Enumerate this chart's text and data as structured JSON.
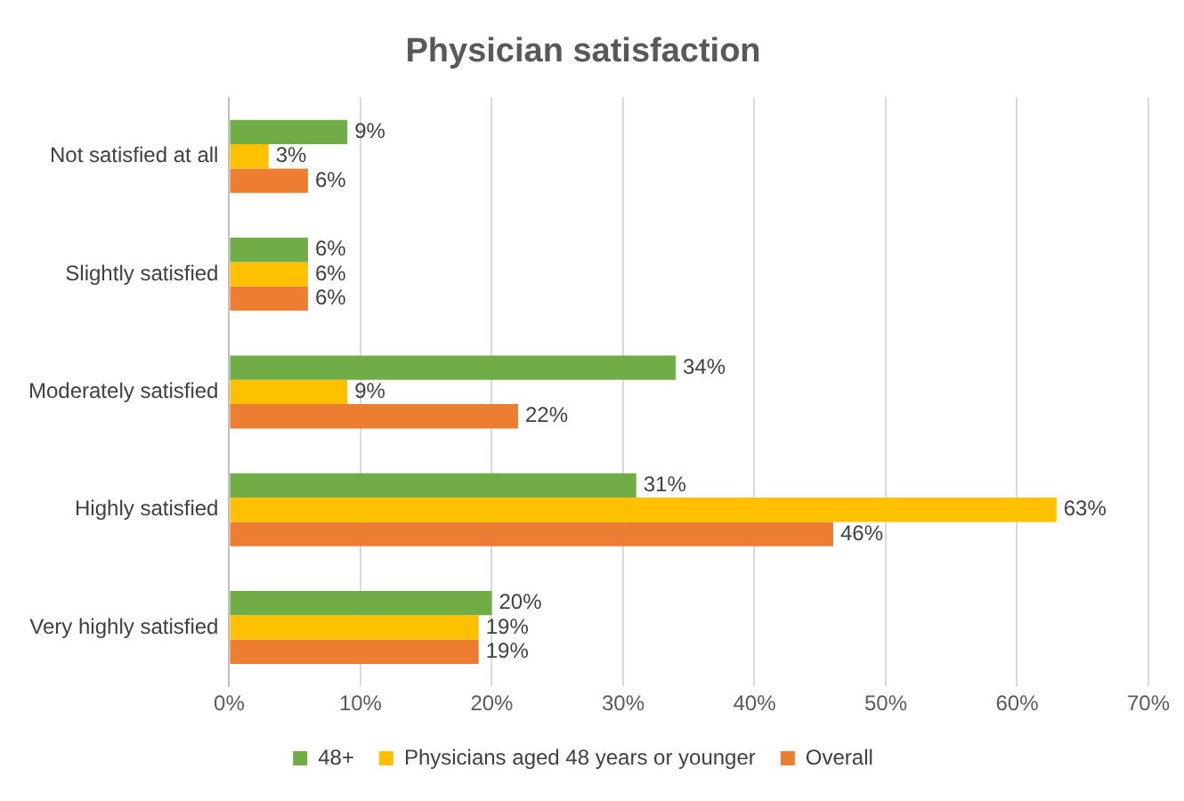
{
  "chart_data": {
    "type": "bar",
    "orientation": "horizontal",
    "title": "Physician satisfaction",
    "categories": [
      "Not satisfied at all",
      "Slightly satisfied",
      "Moderately satisfied",
      "Highly satisfied",
      "Very highly satisfied"
    ],
    "series": [
      {
        "name": "48+",
        "color": "#70ad47",
        "values": [
          9,
          6,
          34,
          31,
          20
        ],
        "value_labels": [
          "9%",
          "6%",
          "34%",
          "31%",
          "20%"
        ]
      },
      {
        "name": "Physicians aged 48 years or younger",
        "color": "#ffc000",
        "values": [
          3,
          6,
          9,
          63,
          19
        ],
        "value_labels": [
          "3%",
          "6%",
          "9%",
          "63%",
          "19%"
        ]
      },
      {
        "name": "Overall",
        "color": "#ed7d31",
        "values": [
          6,
          6,
          22,
          46,
          19
        ],
        "value_labels": [
          "6%",
          "6%",
          "22%",
          "46%",
          "19%"
        ]
      }
    ],
    "xlim": [
      0,
      70
    ],
    "xticks": [
      {
        "value": 0,
        "label": "0%"
      },
      {
        "value": 10,
        "label": "10%"
      },
      {
        "value": 20,
        "label": "20%"
      },
      {
        "value": 30,
        "label": "30%"
      },
      {
        "value": 40,
        "label": "40%"
      },
      {
        "value": 50,
        "label": "50%"
      },
      {
        "value": 60,
        "label": "60%"
      },
      {
        "value": 70,
        "label": "70%"
      }
    ],
    "grid": "x",
    "legend": "bottom"
  }
}
